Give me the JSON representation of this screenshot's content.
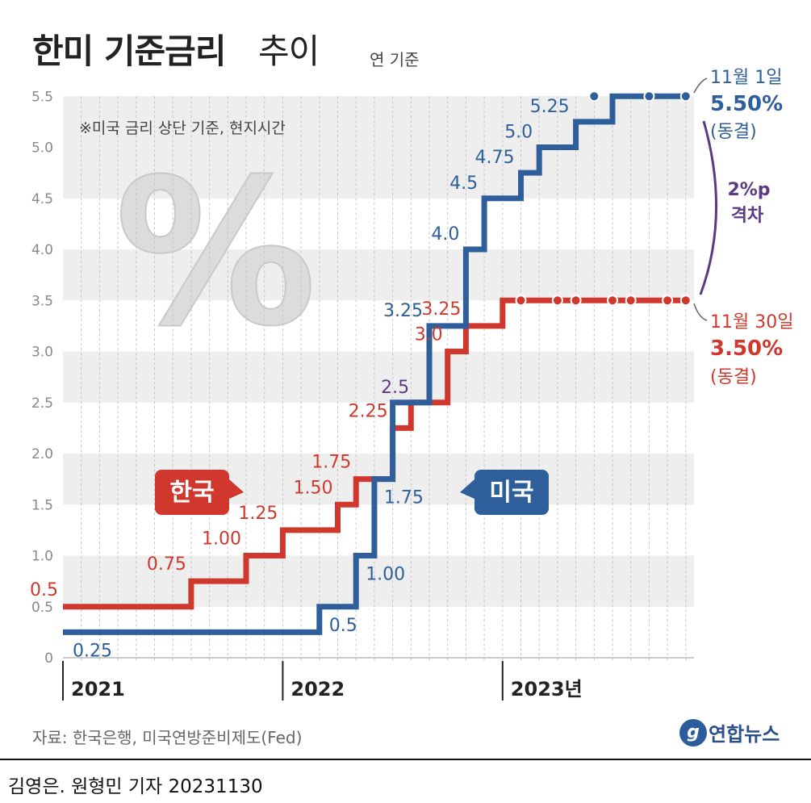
{
  "title": {
    "main": "한미 기준금리",
    "sub": "추이",
    "unit": "연 기준"
  },
  "note": "※미국 금리 상단 기준, 현지시간",
  "source": "자료: 한국은행, 미국연방준비제도(Fed)",
  "logo": "연합뉴스",
  "byline": "김영은. 원형민 기자  20231130",
  "colors": {
    "korea": "#d0382e",
    "us": "#2f5f9a",
    "gap": "#5a3b82",
    "grid_band": "#eeeeee"
  },
  "chart_data": {
    "type": "line",
    "step": true,
    "ylim": [
      0,
      5.5
    ],
    "y_ticks": [
      "0",
      "0.5",
      "1.0",
      "1.5",
      "2.0",
      "2.5",
      "3.0",
      "3.5",
      "4.0",
      "4.5",
      "5.0",
      "5.5"
    ],
    "x_tick_labels": [
      "2021",
      "2022",
      "2023년"
    ],
    "grid": true,
    "series": [
      {
        "name": "한국",
        "color": "#d0382e",
        "points": [
          [
            "2021-01",
            0.5
          ],
          [
            "2021-08",
            0.75
          ],
          [
            "2021-11",
            1.0
          ],
          [
            "2022-01",
            1.25
          ],
          [
            "2022-04",
            1.5
          ],
          [
            "2022-05",
            1.75
          ],
          [
            "2022-07",
            2.25
          ],
          [
            "2022-08",
            2.5
          ],
          [
            "2022-10",
            3.0
          ],
          [
            "2022-11",
            3.25
          ],
          [
            "2023-01",
            3.5
          ],
          [
            "2023-11",
            3.5
          ]
        ],
        "labels": [
          "0.5",
          "0.75",
          "1.00",
          "1.25",
          "1.50",
          "1.75",
          "2.25",
          "",
          "3.0",
          "3.25",
          "",
          ""
        ],
        "hold_markers": [
          "2023-02",
          "2023-04",
          "2023-05",
          "2023-07",
          "2023-08",
          "2023-10",
          "2023-11"
        ],
        "end_annotation": {
          "date": "11월 30일",
          "value": "3.50%",
          "status": "(동결)"
        }
      },
      {
        "name": "미국",
        "color": "#2f5f9a",
        "points": [
          [
            "2021-01",
            0.25
          ],
          [
            "2022-03",
            0.5
          ],
          [
            "2022-05",
            1.0
          ],
          [
            "2022-06",
            1.75
          ],
          [
            "2022-07",
            2.5
          ],
          [
            "2022-09",
            3.25
          ],
          [
            "2022-11",
            4.0
          ],
          [
            "2022-12",
            4.5
          ],
          [
            "2023-02",
            4.75
          ],
          [
            "2023-03",
            5.0
          ],
          [
            "2023-05",
            5.25
          ],
          [
            "2023-07",
            5.5
          ],
          [
            "2023-11",
            5.5
          ]
        ],
        "labels": [
          "0.25",
          "0.5",
          "1.00",
          "1.75",
          "",
          "3.25",
          "4.0",
          "4.5",
          "4.75",
          "5.0",
          "5.25",
          "",
          ""
        ],
        "hold_markers": [
          "2023-06",
          "2023-09",
          "2023-11"
        ],
        "end_annotation": {
          "date": "11월 1일",
          "value": "5.50%",
          "status": "(동결)"
        }
      }
    ],
    "shared_labels": [
      {
        "date": "2022-07",
        "value": 2.5,
        "text": "2.5"
      }
    ],
    "gap_annotation": {
      "line1": "2%p",
      "line2": "격차"
    }
  }
}
